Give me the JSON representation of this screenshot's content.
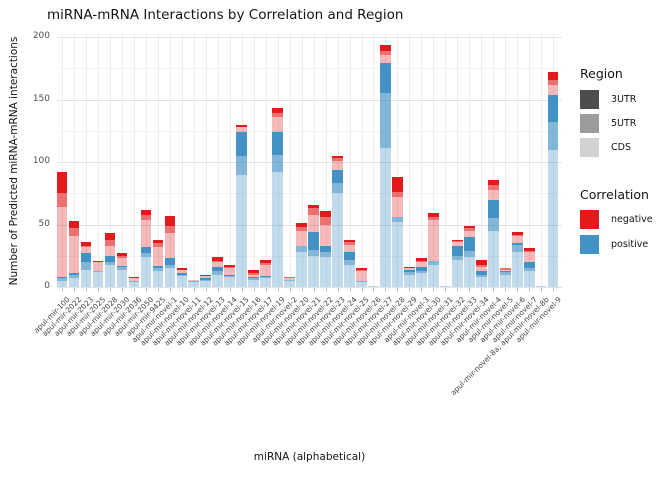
{
  "title": "miRNA-mRNA Interactions by Correlation and Region",
  "axes": {
    "x_label": "miRNA (alphabetical)",
    "y_label": "Number of Predicted miRNA-mRNA interactions",
    "y_ticks": [
      0,
      50,
      100,
      150,
      200
    ],
    "y_minor_gridlines": [
      25,
      75,
      125,
      175
    ]
  },
  "legend": {
    "region": {
      "title": "Region",
      "items": [
        {
          "label": "3UTR",
          "color": "#4d4d4d"
        },
        {
          "label": "5UTR",
          "color": "#9c9c9c"
        },
        {
          "label": "CDS",
          "color": "#d2d2d2"
        }
      ]
    },
    "correlation": {
      "title": "Correlation",
      "items": [
        {
          "label": "negative",
          "color": "#e31a1c"
        },
        {
          "label": "positive",
          "color": "#4292c6"
        }
      ]
    }
  },
  "chart_data": {
    "type": "bar",
    "stacked": true,
    "legend_position": "right",
    "title": "miRNA-mRNA Interactions by Correlation and Region",
    "xlabel": "miRNA (alphabetical)",
    "ylabel": "Number of Predicted miRNA-mRNA interactions",
    "ylim": [
      0,
      200
    ],
    "categories": [
      "apul-mir-100",
      "apul-mir-2022",
      "apul-mir-2023",
      "apul-mir-2025",
      "apul-mir-2028",
      "apul-mir-2030",
      "apul-mir-2036",
      "apul-mir-2050",
      "apul-mir-9425",
      "apul-mir-novel-1",
      "apul-mir-novel-10",
      "apul-mir-novel-11",
      "apul-mir-novel-12",
      "apul-mir-novel-13",
      "apul-mir-novel-14",
      "apul-mir-novel-15",
      "apul-mir-novel-16",
      "apul-mir-novel-17",
      "apul-mir-novel-19",
      "apul-mir-novel-2",
      "apul-mir-novel-20",
      "apul-mir-novel-21",
      "apul-mir-novel-22",
      "apul-mir-novel-23",
      "apul-mir-novel-24",
      "apul-mir-novel-25",
      "apul-mir-novel-26",
      "apul-mir-novel-27",
      "apul-mir-novel-28",
      "apul-mir-novel-29",
      "apul-mir-novel-3",
      "apul-mir-novel-30",
      "apul-mir-novel-31",
      "apul-mir-novel-32",
      "apul-mir-novel-33",
      "apul-mir-novel-34",
      "apul-mir-novel-4",
      "apul-mir-novel-5",
      "apul-mir-novel-6",
      "apul-mir-novel-7",
      "apul-mir-novel-8a; apul-mir-novel-8b",
      "apul-mir-novel-9"
    ],
    "series": [
      {
        "name": "positive CDS",
        "correlation": "positive",
        "region": "CDS",
        "color": "rgba(66,146,198,0.33)",
        "values": [
          5,
          7,
          14,
          12,
          18,
          14,
          4,
          24,
          13,
          15,
          9,
          4,
          5,
          10,
          8,
          90,
          6,
          7,
          92,
          5,
          28,
          25,
          24,
          75,
          18,
          4,
          1,
          111,
          52,
          10,
          11,
          18,
          1,
          22,
          24,
          8,
          45,
          10,
          28,
          13,
          1,
          110
        ]
      },
      {
        "name": "positive 5UTR",
        "correlation": "positive",
        "region": "5UTR",
        "color": "rgba(66,146,198,0.66)",
        "values": [
          2,
          3,
          6,
          1,
          2,
          2,
          1,
          3,
          2,
          3,
          1,
          1,
          1,
          3,
          1,
          15,
          1,
          1,
          14,
          1,
          5,
          5,
          4,
          8,
          4,
          1,
          0,
          44,
          4,
          2,
          2,
          3,
          0,
          3,
          5,
          2,
          10,
          2,
          6,
          2,
          0,
          22
        ]
      },
      {
        "name": "positive 3UTR",
        "correlation": "positive",
        "region": "3UTR",
        "color": "rgba(66,146,198,1)",
        "values": [
          1,
          1,
          7,
          0,
          5,
          1,
          0,
          5,
          2,
          5,
          1,
          0,
          1,
          3,
          1,
          19,
          1,
          1,
          18,
          0,
          0,
          14,
          5,
          11,
          6,
          0,
          0,
          24,
          0,
          2,
          3,
          0,
          0,
          8,
          11,
          3,
          15,
          1,
          1,
          5,
          0,
          22
        ]
      },
      {
        "name": "negative CDS",
        "correlation": "negative",
        "region": "CDS",
        "color": "rgba(227,26,28,0.3)",
        "values": [
          56,
          30,
          5,
          7,
          8,
          6,
          2,
          22,
          15,
          20,
          3,
          1,
          2,
          4,
          5,
          4,
          2,
          9,
          12,
          1,
          12,
          14,
          17,
          7,
          6,
          8,
          0,
          7,
          16,
          1,
          4,
          33,
          0,
          3,
          5,
          3,
          8,
          1,
          6,
          8,
          0,
          8
        ]
      },
      {
        "name": "negative 5UTR",
        "correlation": "negative",
        "region": "5UTR",
        "color": "rgba(227,26,28,0.62)",
        "values": [
          11,
          6,
          1,
          0,
          5,
          2,
          0,
          4,
          3,
          6,
          0,
          0,
          0,
          1,
          1,
          0,
          1,
          1,
          3,
          1,
          3,
          5,
          6,
          2,
          2,
          1,
          0,
          3,
          4,
          0,
          1,
          2,
          0,
          1,
          2,
          2,
          4,
          1,
          1,
          1,
          0,
          4
        ]
      },
      {
        "name": "negative 3UTR",
        "correlation": "negative",
        "region": "3UTR",
        "color": "rgba(227,26,28,1)",
        "values": [
          17,
          6,
          3,
          1,
          5,
          2,
          1,
          4,
          3,
          8,
          1,
          0,
          1,
          3,
          2,
          2,
          3,
          3,
          4,
          0,
          3,
          3,
          5,
          2,
          2,
          1,
          0,
          5,
          12,
          1,
          2,
          3,
          0,
          1,
          2,
          4,
          4,
          0,
          2,
          2,
          0,
          6
        ]
      }
    ]
  }
}
